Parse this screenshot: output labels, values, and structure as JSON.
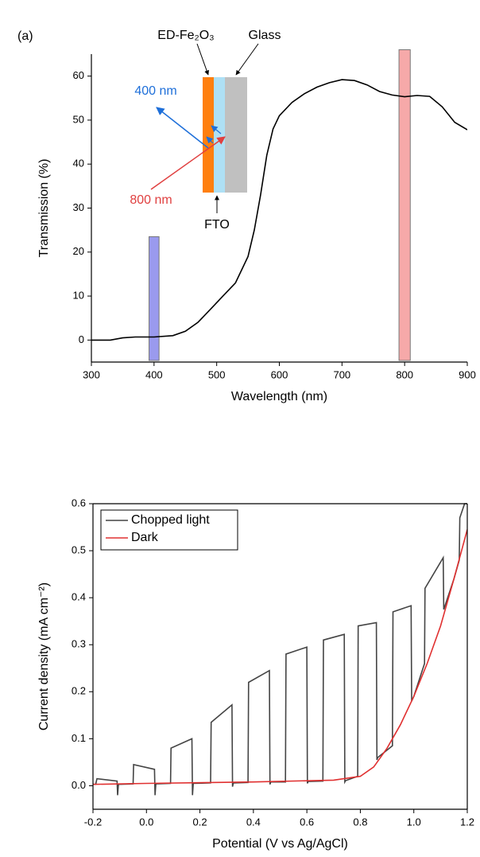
{
  "chart_data": [
    {
      "type": "line",
      "xlabel": "Wavelength (nm)",
      "ylabel": "Transmission (%)",
      "x": [
        300,
        330,
        350,
        370,
        400,
        430,
        450,
        470,
        490,
        510,
        530,
        550,
        560,
        570,
        580,
        590,
        600,
        620,
        640,
        660,
        680,
        700,
        720,
        740,
        760,
        780,
        800,
        820,
        840,
        860,
        880,
        900
      ],
      "values": [
        0,
        0,
        0.5,
        0.7,
        0.7,
        1,
        2,
        4,
        7,
        10,
        13,
        19,
        25,
        33,
        42,
        48,
        51,
        54,
        56,
        57.5,
        58.5,
        59.2,
        59,
        58,
        56.5,
        55.7,
        55.3,
        55.6,
        55.4,
        53,
        49.5,
        47.8
      ],
      "color": "#000000",
      "xlim": [
        300,
        900
      ],
      "ylim": [
        -5,
        65
      ],
      "xticks": [
        300,
        400,
        500,
        600,
        700,
        800,
        900
      ],
      "yticks": [
        0,
        10,
        20,
        30,
        40,
        50,
        60
      ],
      "bars": [
        {
          "x": [
            392,
            408
          ],
          "top": 23.5,
          "color": "#9a9aee"
        },
        {
          "x": [
            791,
            809
          ],
          "top": 66,
          "color": "#f6a9a9"
        }
      ],
      "annotations": [
        "(a)",
        "ED-Fe₂O₃",
        "Glass",
        "400 nm",
        "800 nm",
        "FTO"
      ]
    },
    {
      "type": "line",
      "xlabel": "Potential (V vs Ag/AgCl)",
      "ylabel": "Current density (mA cm⁻²)",
      "series": [
        {
          "name": "Chopped light",
          "color": "#444444",
          "x": [
            -0.2,
            -0.19,
            -0.185,
            -0.11,
            -0.108,
            -0.105,
            -0.05,
            -0.048,
            0.03,
            0.032,
            0.035,
            0.09,
            0.092,
            0.17,
            0.172,
            0.175,
            0.24,
            0.242,
            0.32,
            0.322,
            0.325,
            0.38,
            0.382,
            0.46,
            0.462,
            0.465,
            0.52,
            0.522,
            0.6,
            0.602,
            0.605,
            0.66,
            0.662,
            0.74,
            0.742,
            0.745,
            0.79,
            0.792,
            0.86,
            0.862,
            0.865,
            0.92,
            0.922,
            0.99,
            0.992,
            1.0,
            1.04,
            1.042,
            1.11,
            1.112,
            1.15,
            1.17,
            1.172,
            1.19,
            1.2
          ],
          "values": [
            0.003,
            0.003,
            0.015,
            0.01,
            -0.02,
            0.003,
            0.004,
            0.045,
            0.035,
            -0.02,
            0.004,
            0.005,
            0.08,
            0.1,
            -0.02,
            0.005,
            0.006,
            0.135,
            0.172,
            -0.002,
            0.006,
            0.007,
            0.22,
            0.245,
            0.003,
            0.008,
            0.008,
            0.28,
            0.295,
            0.005,
            0.009,
            0.01,
            0.31,
            0.322,
            0.008,
            0.011,
            0.02,
            0.34,
            0.347,
            0.055,
            0.06,
            0.085,
            0.37,
            0.383,
            0.18,
            0.19,
            0.26,
            0.42,
            0.485,
            0.375,
            0.44,
            0.48,
            0.57,
            0.6,
            0.6
          ]
        },
        {
          "name": "Dark",
          "color": "#e03030",
          "x": [
            -0.2,
            0.0,
            0.4,
            0.7,
            0.8,
            0.85,
            0.9,
            0.95,
            1.0,
            1.05,
            1.1,
            1.15,
            1.2
          ],
          "values": [
            0.003,
            0.005,
            0.008,
            0.012,
            0.02,
            0.04,
            0.08,
            0.13,
            0.19,
            0.26,
            0.34,
            0.44,
            0.545
          ]
        }
      ],
      "xlim": [
        -0.2,
        1.2
      ],
      "ylim": [
        -0.05,
        0.6
      ],
      "xticks": [
        -0.2,
        {
          "value": 0,
          "label": "0.0"
        },
        0.2,
        0.4,
        0.6,
        0.8,
        {
          "value": 1,
          "label": "1.0"
        },
        1.2
      ],
      "yticks": [
        {
          "value": 0,
          "label": "0.0"
        },
        0.1,
        0.2,
        0.3,
        0.4,
        0.5,
        0.6
      ],
      "legend": "upper left"
    }
  ]
}
